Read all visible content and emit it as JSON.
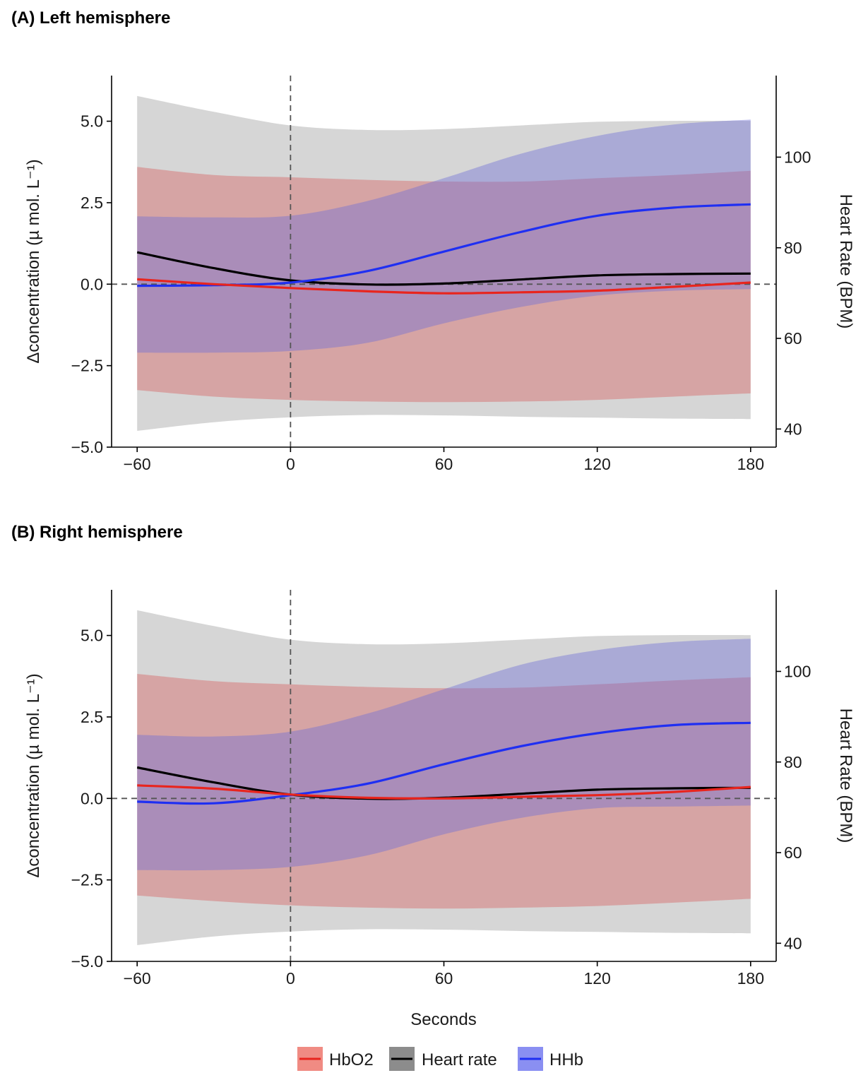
{
  "figure": {
    "xlabel": "Seconds",
    "legend": [
      {
        "label": "HbO2",
        "line_color": "#e8251e",
        "fill_color": "#f08b83"
      },
      {
        "label": "Heart rate",
        "line_color": "#000000",
        "fill_color": "#8c8c8c"
      },
      {
        "label": "HHb",
        "line_color": "#1f2ff2",
        "fill_color": "#8a8ff2"
      }
    ]
  },
  "colors": {
    "hbo2_line": "#e8251e",
    "hbo2_band": "rgba(214,96,96,0.42)",
    "hr_line": "#000000",
    "hr_band": "rgba(130,130,130,0.33)",
    "hhb_line": "#1f2ff2",
    "hhb_band": "rgba(110,110,215,0.42)"
  },
  "chart_data": [
    {
      "type": "line",
      "title": "(A)  Left hemisphere",
      "xlabel": "Seconds",
      "ylabel": "Δconcentration (µ mol. L⁻¹)",
      "y2label": "Heart Rate (BPM)",
      "xlim": [
        -70,
        190
      ],
      "ylim": [
        -5.0,
        6.4
      ],
      "y2lim": [
        36.0,
        118.0
      ],
      "xticks": [
        -60,
        0,
        60,
        120,
        180
      ],
      "xtick_labels": [
        "−60",
        "0",
        "60",
        "120",
        "180"
      ],
      "yticks": [
        -5.0,
        -2.5,
        0.0,
        2.5,
        5.0
      ],
      "ytick_labels": [
        "−5.0",
        "−2.5",
        "0.0",
        "2.5",
        "5.0"
      ],
      "y2ticks": [
        40,
        60,
        80,
        100
      ],
      "y2tick_labels": [
        "40",
        "60",
        "80",
        "100"
      ],
      "reference_lines": {
        "x": 0,
        "y": 0
      },
      "x": [
        -60,
        -30,
        0,
        30,
        60,
        90,
        120,
        150,
        180
      ],
      "series": [
        {
          "name": "Heart rate",
          "axis": "y2",
          "values": [
            79.0,
            75.5,
            72.8,
            71.9,
            72.1,
            73.0,
            73.9,
            74.2,
            74.3
          ],
          "lower": [
            39.6,
            41.5,
            42.6,
            43.1,
            43.0,
            42.7,
            42.5,
            42.3,
            42.2
          ],
          "upper": [
            113.5,
            110.0,
            107.0,
            106.0,
            106.2,
            107.0,
            107.8,
            108.0,
            108.0
          ]
        },
        {
          "name": "HbO2",
          "axis": "y",
          "values": [
            0.15,
            0.0,
            -0.12,
            -0.22,
            -0.28,
            -0.25,
            -0.2,
            -0.08,
            0.05
          ],
          "lower": [
            -3.25,
            -3.45,
            -3.55,
            -3.6,
            -3.62,
            -3.6,
            -3.55,
            -3.45,
            -3.35
          ],
          "upper": [
            3.6,
            3.35,
            3.28,
            3.2,
            3.15,
            3.15,
            3.25,
            3.35,
            3.48
          ]
        },
        {
          "name": "HHb",
          "axis": "y",
          "values": [
            -0.05,
            -0.03,
            0.05,
            0.4,
            1.0,
            1.6,
            2.1,
            2.35,
            2.45
          ],
          "lower": [
            -2.1,
            -2.1,
            -2.05,
            -1.8,
            -1.2,
            -0.7,
            -0.35,
            -0.2,
            -0.15
          ],
          "upper": [
            2.08,
            2.05,
            2.1,
            2.55,
            3.25,
            4.0,
            4.55,
            4.9,
            5.05
          ]
        }
      ]
    },
    {
      "type": "line",
      "title": "(B)  Right hemisphere",
      "xlabel": "Seconds",
      "ylabel": "Δconcentration (µ mol. L⁻¹)",
      "y2label": "Heart Rate (BPM)",
      "xlim": [
        -70,
        190
      ],
      "ylim": [
        -5.0,
        6.4
      ],
      "y2lim": [
        36.0,
        118.0
      ],
      "xticks": [
        -60,
        0,
        60,
        120,
        180
      ],
      "xtick_labels": [
        "−60",
        "0",
        "60",
        "120",
        "180"
      ],
      "yticks": [
        -5.0,
        -2.5,
        0.0,
        2.5,
        5.0
      ],
      "ytick_labels": [
        "−5.0",
        "−2.5",
        "0.0",
        "2.5",
        "5.0"
      ],
      "y2ticks": [
        40,
        60,
        80,
        100
      ],
      "y2tick_labels": [
        "40",
        "60",
        "80",
        "100"
      ],
      "reference_lines": {
        "x": 0,
        "y": 0
      },
      "x": [
        -60,
        -30,
        0,
        30,
        60,
        90,
        120,
        150,
        180
      ],
      "series": [
        {
          "name": "Heart rate",
          "axis": "y2",
          "values": [
            78.8,
            75.5,
            72.8,
            71.9,
            72.1,
            73.0,
            73.9,
            74.2,
            74.3
          ],
          "lower": [
            39.6,
            41.5,
            42.6,
            43.1,
            43.0,
            42.7,
            42.5,
            42.3,
            42.2
          ],
          "upper": [
            113.5,
            110.0,
            107.0,
            106.0,
            106.2,
            107.0,
            107.8,
            108.0,
            108.0
          ]
        },
        {
          "name": "HbO2",
          "axis": "y",
          "values": [
            0.4,
            0.3,
            0.12,
            0.02,
            0.0,
            0.05,
            0.1,
            0.2,
            0.35
          ],
          "lower": [
            -2.98,
            -3.15,
            -3.28,
            -3.35,
            -3.38,
            -3.35,
            -3.3,
            -3.2,
            -3.08
          ],
          "upper": [
            3.82,
            3.6,
            3.5,
            3.42,
            3.38,
            3.4,
            3.5,
            3.62,
            3.72
          ]
        },
        {
          "name": "HHb",
          "axis": "y",
          "values": [
            -0.1,
            -0.15,
            0.1,
            0.45,
            1.05,
            1.6,
            2.0,
            2.25,
            2.32
          ],
          "lower": [
            -2.2,
            -2.2,
            -2.1,
            -1.75,
            -1.1,
            -0.6,
            -0.3,
            -0.25,
            -0.22
          ],
          "upper": [
            1.95,
            1.9,
            2.05,
            2.6,
            3.35,
            4.1,
            4.55,
            4.8,
            4.9
          ]
        }
      ]
    }
  ]
}
